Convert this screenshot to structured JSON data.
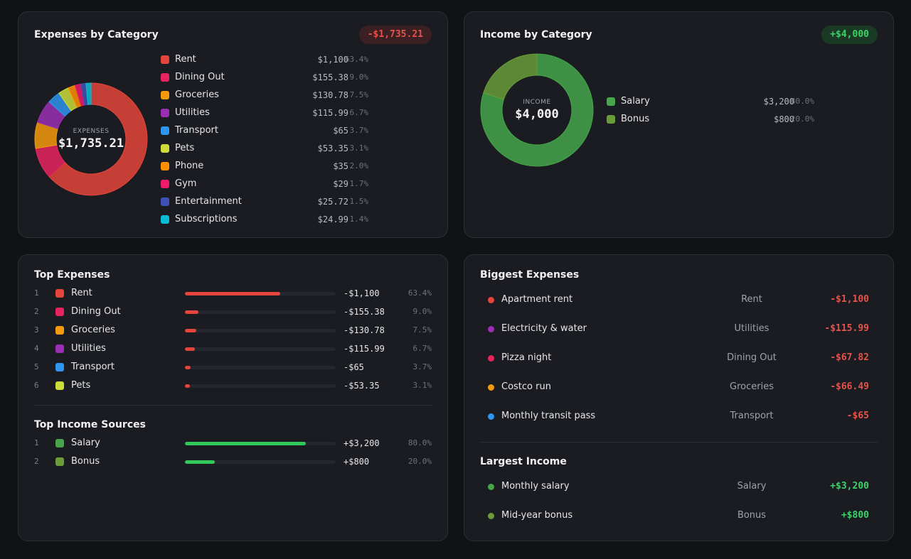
{
  "expenses_by_category": {
    "title": "Expenses by Category",
    "total_badge": "-$1,735.21",
    "center_caption": "EXPENSES",
    "center_total": "$1,735.21",
    "items": [
      {
        "label": "Rent",
        "amount": "$1,100",
        "percent": "63.4%",
        "value": 1100,
        "color": "#e5453b"
      },
      {
        "label": "Dining Out",
        "amount": "$155.38",
        "percent": "9.0%",
        "value": 155.38,
        "color": "#e8245f"
      },
      {
        "label": "Groceries",
        "amount": "$130.78",
        "percent": "7.5%",
        "value": 130.78,
        "color": "#f59a0c"
      },
      {
        "label": "Utilities",
        "amount": "$115.99",
        "percent": "6.7%",
        "value": 115.99,
        "color": "#9b2fb3"
      },
      {
        "label": "Transport",
        "amount": "$65",
        "percent": "3.7%",
        "value": 65,
        "color": "#2f95ee"
      },
      {
        "label": "Pets",
        "amount": "$53.35",
        "percent": "3.1%",
        "value": 53.35,
        "color": "#cddc39"
      },
      {
        "label": "Phone",
        "amount": "$35",
        "percent": "2.0%",
        "value": 35,
        "color": "#ff8f00"
      },
      {
        "label": "Gym",
        "amount": "$29",
        "percent": "1.7%",
        "value": 29,
        "color": "#f01a6a"
      },
      {
        "label": "Entertainment",
        "amount": "$25.72",
        "percent": "1.5%",
        "value": 25.72,
        "color": "#3f51b5"
      },
      {
        "label": "Subscriptions",
        "amount": "$24.99",
        "percent": "1.4%",
        "value": 24.99,
        "color": "#0bbcd4"
      }
    ]
  },
  "income_by_category": {
    "title": "Income by Category",
    "total_badge": "+$4,000",
    "center_caption": "INCOME",
    "center_total": "$4,000",
    "items": [
      {
        "label": "Salary",
        "amount": "$3,200",
        "percent": "80.0%",
        "value": 3200,
        "color": "#45a64a"
      },
      {
        "label": "Bonus",
        "amount": "$800",
        "percent": "20.0%",
        "value": 800,
        "color": "#6a9c3a"
      }
    ]
  },
  "top_expenses": {
    "title": "Top Expenses",
    "items": [
      {
        "rank": "1",
        "label": "Rent",
        "amount": "-$1,100",
        "percent": "63.4%",
        "share": 0.634,
        "color": "#e5453b"
      },
      {
        "rank": "2",
        "label": "Dining Out",
        "amount": "-$155.38",
        "percent": "9.0%",
        "share": 0.09,
        "color": "#e8245f"
      },
      {
        "rank": "3",
        "label": "Groceries",
        "amount": "-$130.78",
        "percent": "7.5%",
        "share": 0.075,
        "color": "#f59a0c"
      },
      {
        "rank": "4",
        "label": "Utilities",
        "amount": "-$115.99",
        "percent": "6.7%",
        "share": 0.067,
        "color": "#9b2fb3"
      },
      {
        "rank": "5",
        "label": "Transport",
        "amount": "-$65",
        "percent": "3.7%",
        "share": 0.037,
        "color": "#2f95ee"
      },
      {
        "rank": "6",
        "label": "Pets",
        "amount": "-$53.35",
        "percent": "3.1%",
        "share": 0.031,
        "color": "#cddc39"
      }
    ],
    "bar_color": "#e5453b"
  },
  "top_income": {
    "title": "Top Income Sources",
    "items": [
      {
        "rank": "1",
        "label": "Salary",
        "amount": "+$3,200",
        "percent": "80.0%",
        "share": 0.8,
        "color": "#45a64a"
      },
      {
        "rank": "2",
        "label": "Bonus",
        "amount": "+$800",
        "percent": "20.0%",
        "share": 0.2,
        "color": "#6a9c3a"
      }
    ],
    "bar_color": "#31c75a"
  },
  "biggest_expenses": {
    "title": "Biggest Expenses",
    "items": [
      {
        "label": "Apartment rent",
        "category": "Rent",
        "amount": "-$1,100",
        "color": "#e5453b"
      },
      {
        "label": "Electricity & water",
        "category": "Utilities",
        "amount": "-$115.99",
        "color": "#9b2fb3"
      },
      {
        "label": "Pizza night",
        "category": "Dining Out",
        "amount": "-$67.82",
        "color": "#e8245f"
      },
      {
        "label": "Costco run",
        "category": "Groceries",
        "amount": "-$66.49",
        "color": "#f59a0c"
      },
      {
        "label": "Monthly transit pass",
        "category": "Transport",
        "amount": "-$65",
        "color": "#2f95ee"
      }
    ]
  },
  "largest_income": {
    "title": "Largest Income",
    "items": [
      {
        "label": "Monthly salary",
        "category": "Salary",
        "amount": "+$3,200",
        "color": "#45a64a"
      },
      {
        "label": "Mid-year bonus",
        "category": "Bonus",
        "amount": "+$800",
        "color": "#6a9c3a"
      }
    ]
  }
}
